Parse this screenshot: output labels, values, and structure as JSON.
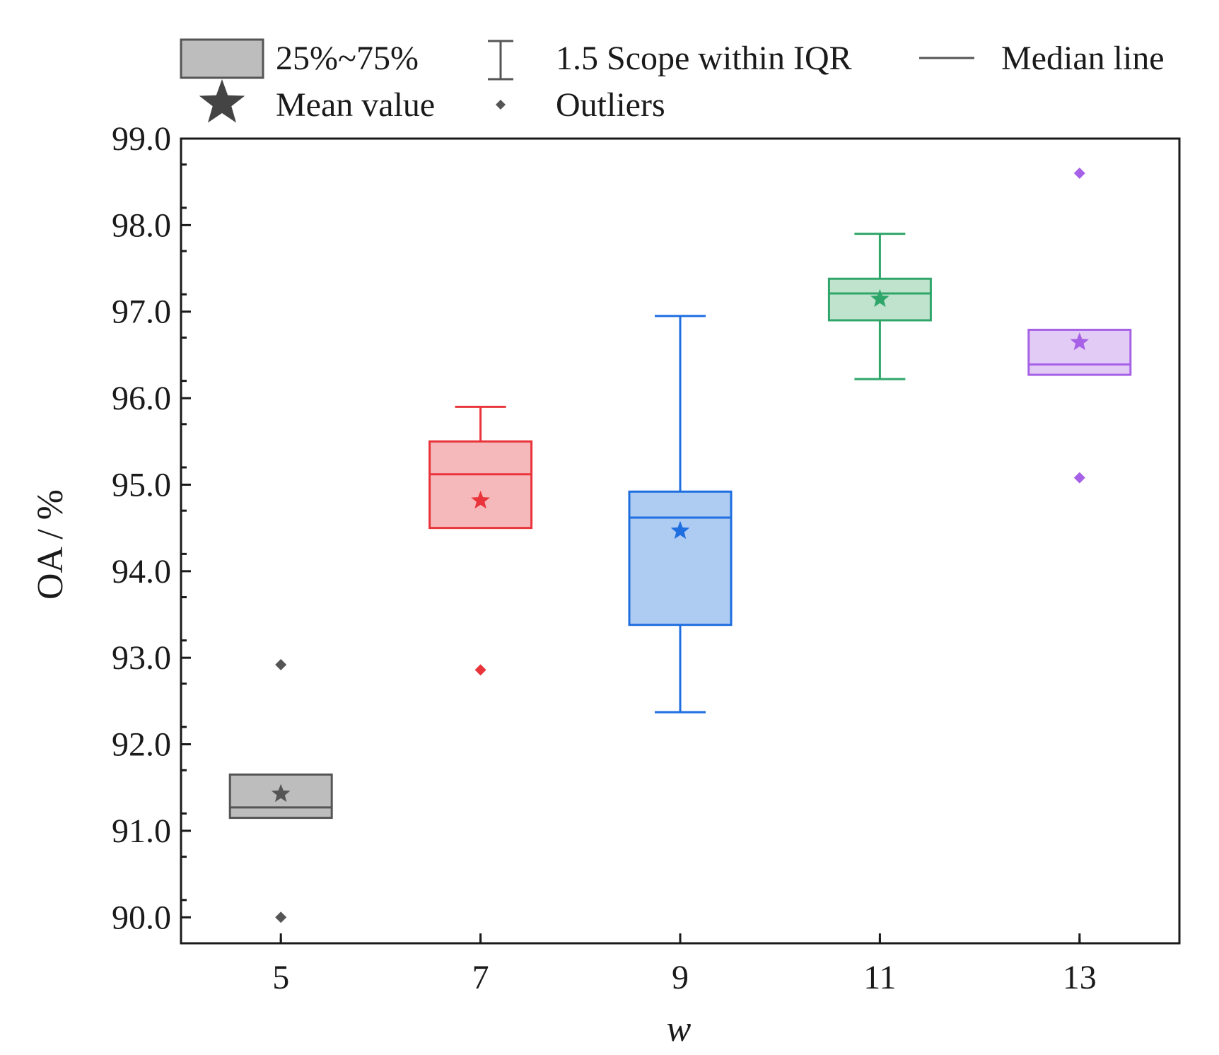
{
  "chart_data": {
    "type": "box",
    "xlabel": "w",
    "ylabel": "OA / %",
    "ylim": [
      89.7,
      99.0
    ],
    "yticks": [
      90.0,
      91.0,
      92.0,
      93.0,
      94.0,
      95.0,
      96.0,
      97.0,
      98.0,
      99.0
    ],
    "ytick_labels": [
      "90.0",
      "91.0",
      "92.0",
      "93.0",
      "94.0",
      "95.0",
      "96.0",
      "97.0",
      "98.0",
      "99.0"
    ],
    "xlim": [
      4,
      14
    ],
    "grid": false,
    "legend": {
      "placement": "top",
      "items": [
        {
          "key": "box",
          "label": "25%~75%"
        },
        {
          "key": "whisker",
          "label": "1.5 Scope within IQR"
        },
        {
          "key": "median",
          "label": "Median line"
        },
        {
          "key": "mean",
          "label": "Mean value"
        },
        {
          "key": "outlier",
          "label": "Outliers"
        }
      ]
    },
    "series": [
      {
        "x": 5,
        "x_label": "5",
        "color": "#555555",
        "fill": "#bdbdbd",
        "q1": 91.15,
        "median": 91.27,
        "q3": 91.65,
        "mean": 91.41,
        "whisker_low": null,
        "whisker_high": null,
        "outliers": [
          92.92,
          90.0
        ]
      },
      {
        "x": 7,
        "x_label": "7",
        "color": "#e8343a",
        "fill": "#f6b9bb",
        "q1": 94.5,
        "median": 95.12,
        "q3": 95.5,
        "mean": 94.8,
        "whisker_low": null,
        "whisker_high": 95.9,
        "outliers": [
          92.86
        ]
      },
      {
        "x": 9,
        "x_label": "9",
        "color": "#1f6fe0",
        "fill": "#aecbf2",
        "q1": 93.38,
        "median": 94.62,
        "q3": 94.92,
        "mean": 94.45,
        "whisker_low": 92.37,
        "whisker_high": 96.95,
        "outliers": []
      },
      {
        "x": 11,
        "x_label": "11",
        "color": "#2ea66a",
        "fill": "#bfe3cc",
        "q1": 96.9,
        "median": 97.21,
        "q3": 97.38,
        "mean": 97.13,
        "whisker_low": 96.22,
        "whisker_high": 97.9,
        "outliers": []
      },
      {
        "x": 13,
        "x_label": "13",
        "color": "#a661e6",
        "fill": "#e2ccf5",
        "q1": 96.27,
        "median": 96.39,
        "q3": 96.79,
        "mean": 96.63,
        "whisker_low": null,
        "whisker_high": null,
        "outliers": [
          98.6,
          95.08
        ]
      }
    ],
    "legend_colors": {
      "stroke": "#555555",
      "fill": "#bdbdbd",
      "mean": "#444444"
    }
  }
}
